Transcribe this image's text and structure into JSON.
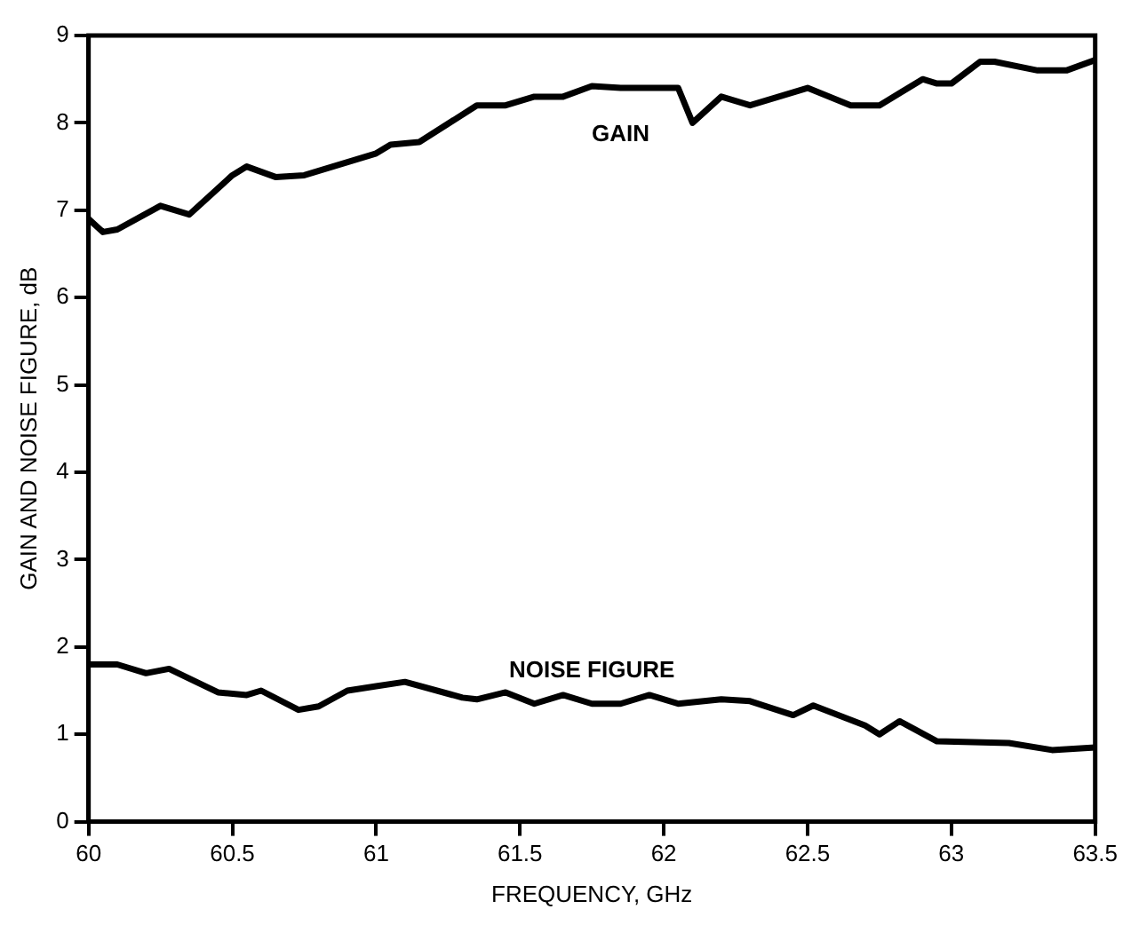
{
  "chart_data": {
    "type": "line",
    "xlabel": "FREQUENCY, GHz",
    "ylabel": "GAIN AND NOISE FIGURE, dB",
    "xlim": [
      60,
      63.5
    ],
    "xticks": [
      60,
      60.5,
      61,
      61.5,
      62,
      62.5,
      63,
      63.5
    ],
    "ylim": [
      0,
      9
    ],
    "yticks": [
      0,
      1,
      2,
      3,
      4,
      5,
      6,
      7,
      8,
      9
    ],
    "grid": false,
    "legend": false,
    "marker": "none",
    "line_style": "solid",
    "series": [
      {
        "name": "GAIN",
        "color": "#000000",
        "x": [
          60,
          60.05,
          60.1,
          60.25,
          60.35,
          60.5,
          60.55,
          60.65,
          60.75,
          61,
          61.05,
          61.15,
          61.35,
          61.45,
          61.55,
          61.65,
          61.75,
          61.85,
          62.05,
          62.1,
          62.2,
          62.3,
          62.5,
          62.65,
          62.75,
          62.9,
          62.95,
          63,
          63.1,
          63.15,
          63.3,
          63.4,
          63.5
        ],
        "values": [
          6.9,
          6.75,
          6.78,
          7.05,
          6.95,
          7.4,
          7.5,
          7.38,
          7.4,
          7.65,
          7.75,
          7.78,
          8.2,
          8.2,
          8.3,
          8.3,
          8.42,
          8.4,
          8.4,
          8.0,
          8.3,
          8.2,
          8.4,
          8.2,
          8.2,
          8.5,
          8.45,
          8.45,
          8.7,
          8.7,
          8.6,
          8.6,
          8.72
        ]
      },
      {
        "name": "NOISE FIGURE",
        "color": "#000000",
        "x": [
          60,
          60.1,
          60.2,
          60.28,
          60.45,
          60.55,
          60.6,
          60.73,
          60.8,
          60.9,
          61,
          61.1,
          61.3,
          61.35,
          61.45,
          61.55,
          61.65,
          61.75,
          61.85,
          61.95,
          62.05,
          62.2,
          62.3,
          62.45,
          62.52,
          62.7,
          62.75,
          62.82,
          62.95,
          63.2,
          63.35,
          63.5
        ],
        "values": [
          1.8,
          1.8,
          1.7,
          1.75,
          1.48,
          1.45,
          1.5,
          1.28,
          1.32,
          1.5,
          1.55,
          1.6,
          1.42,
          1.4,
          1.48,
          1.35,
          1.45,
          1.35,
          1.35,
          1.45,
          1.35,
          1.4,
          1.38,
          1.22,
          1.33,
          1.1,
          1.0,
          1.15,
          0.92,
          0.9,
          0.82,
          0.85
        ]
      }
    ]
  }
}
